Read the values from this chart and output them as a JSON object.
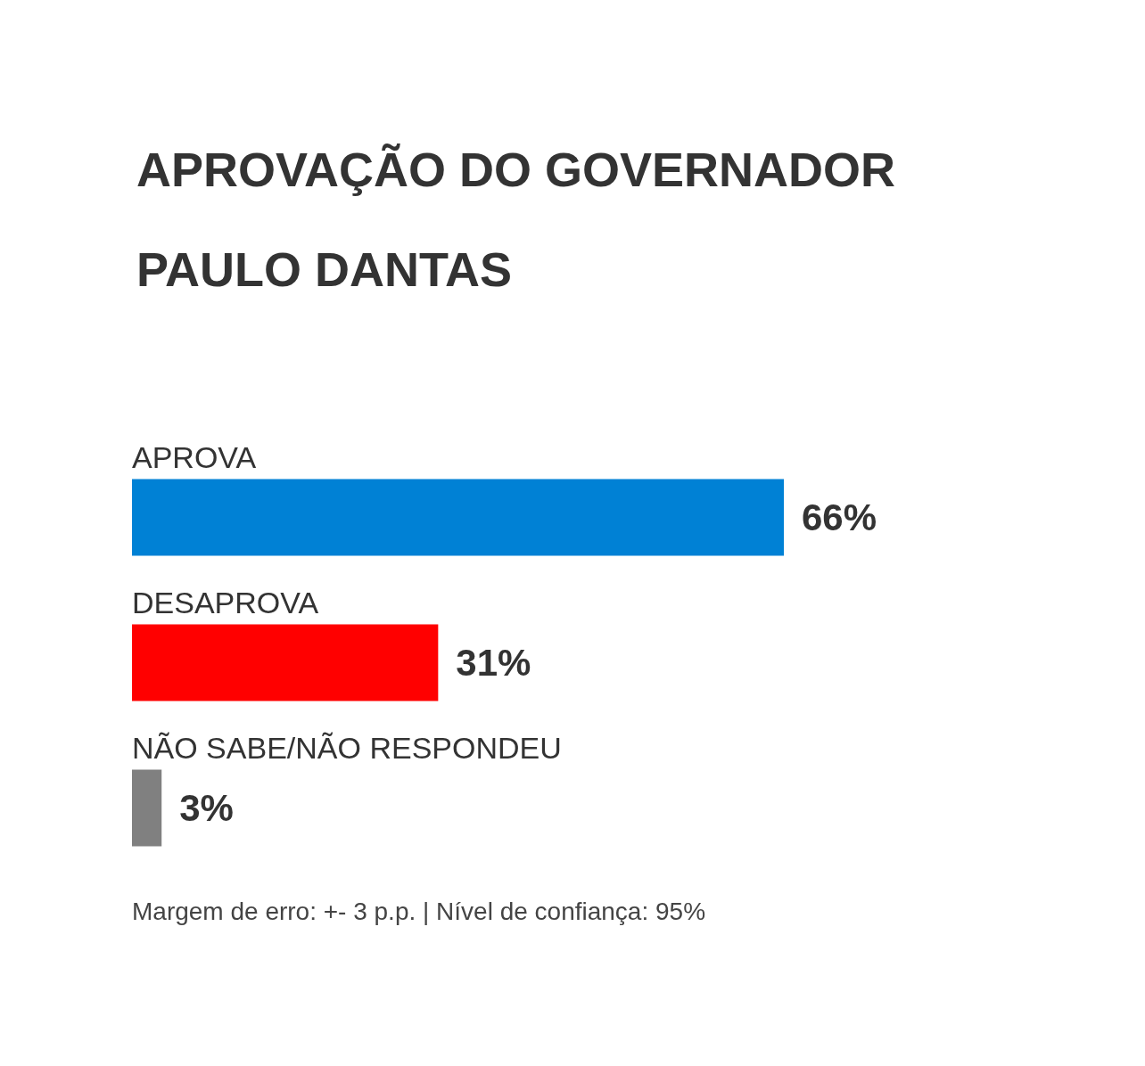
{
  "chart_data": {
    "type": "bar",
    "orientation": "horizontal",
    "title": "APROVAÇÃO DO GOVERNADOR PAULO DANTAS",
    "categories": [
      "APROVA",
      "DESAPROVA",
      "NÃO SABE/NÃO RESPONDEU"
    ],
    "values": [
      66,
      31,
      3
    ],
    "colors": [
      "#0081d5",
      "#ff0000",
      "#808080"
    ],
    "value_labels": [
      "66%",
      "31%",
      "3%"
    ],
    "annotations": [
      "Margem de erro: +- 3 p.p. | Nível de confiança: 95%"
    ]
  }
}
